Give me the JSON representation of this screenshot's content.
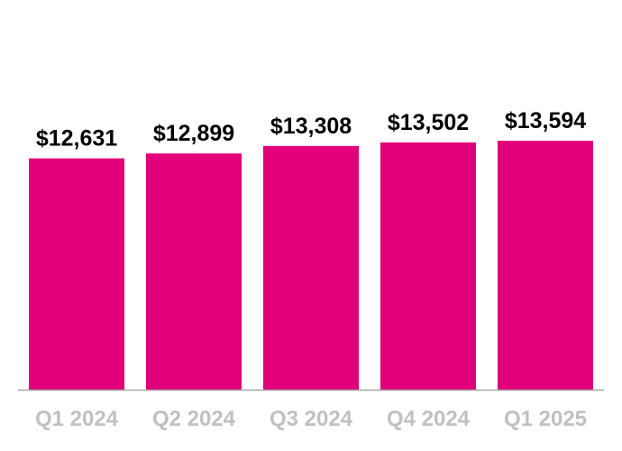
{
  "chart_data": {
    "type": "bar",
    "title": "",
    "xlabel": "",
    "ylabel": "",
    "categories": [
      "Q1 2024",
      "Q2 2024",
      "Q3 2024",
      "Q4 2024",
      "Q1 2025"
    ],
    "values": [
      12631,
      12899,
      13308,
      13502,
      13594
    ],
    "value_labels": [
      "$12,631",
      "$12,899",
      "$13,308",
      "$13,502",
      "$13,594"
    ],
    "ylim": [
      0,
      16700
    ],
    "grid": false,
    "legend": "none",
    "bar_color": "#e10079",
    "axis_color": "#a6a6a6",
    "tick_label_color": "#c0c0c0",
    "value_label_color": "#000000"
  }
}
